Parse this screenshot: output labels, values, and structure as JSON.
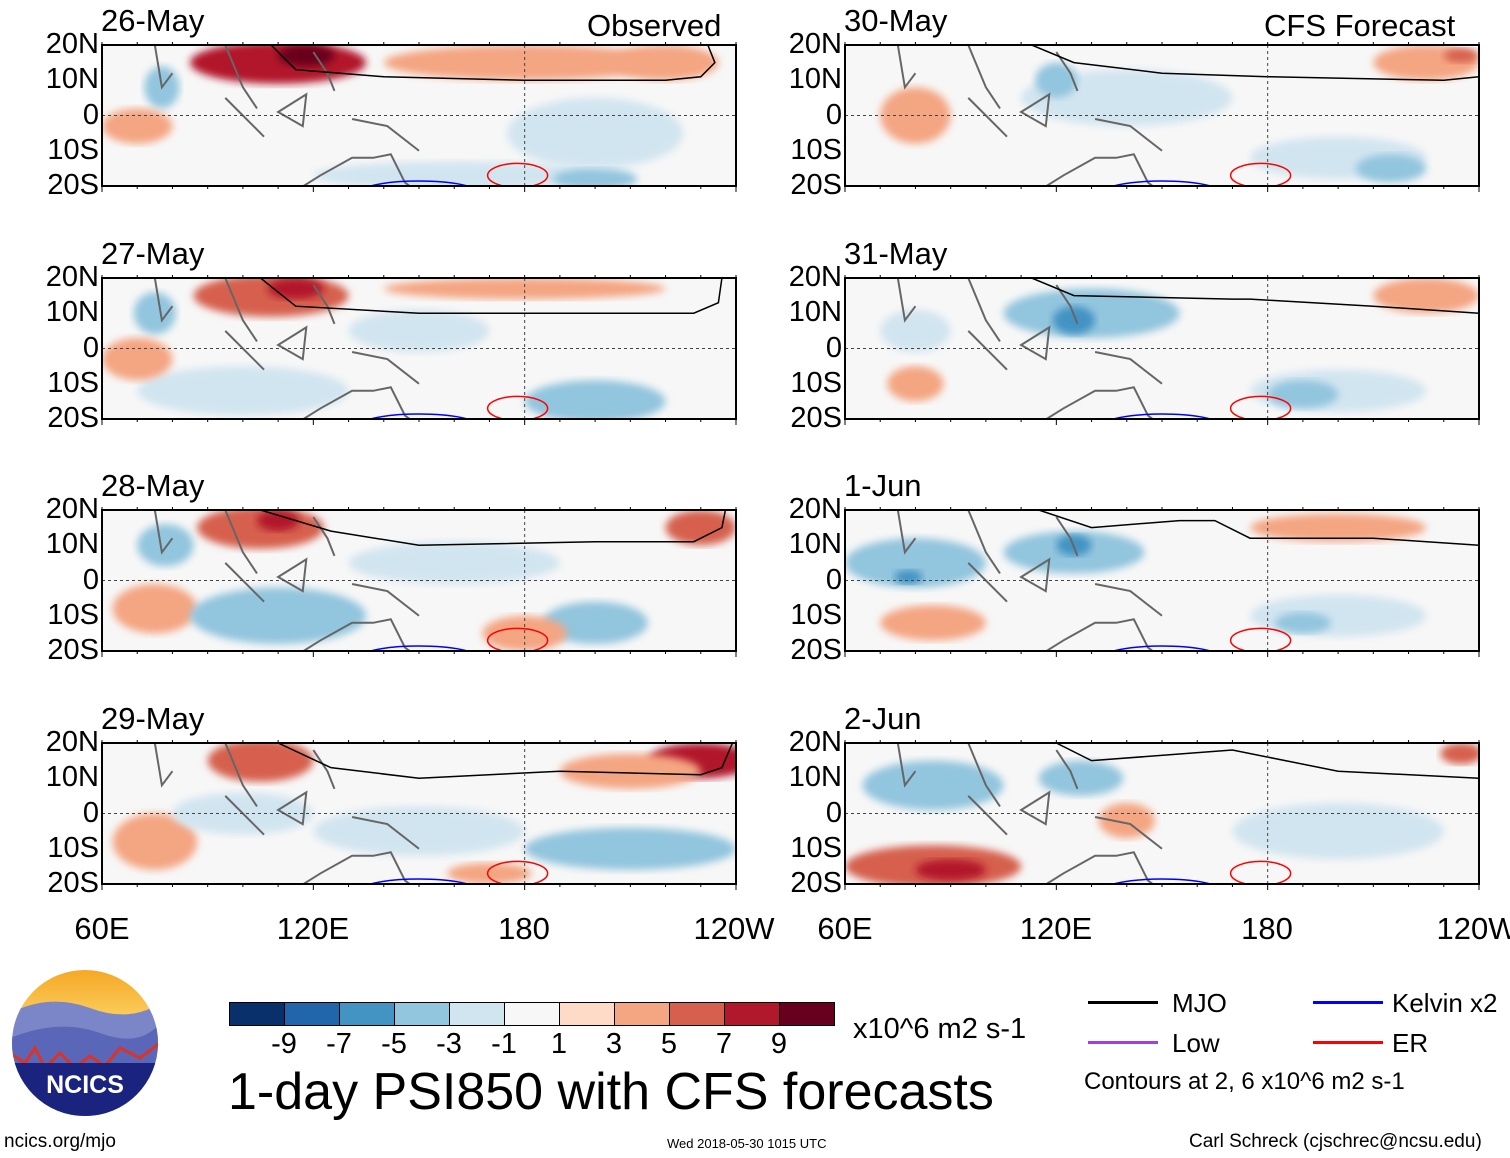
{
  "headers": {
    "left": "Observed",
    "right": "CFS Forecast"
  },
  "panels": [
    {
      "date": "26-May",
      "column": "left"
    },
    {
      "date": "27-May",
      "column": "left"
    },
    {
      "date": "28-May",
      "column": "left"
    },
    {
      "date": "29-May",
      "column": "left"
    },
    {
      "date": "30-May",
      "column": "right"
    },
    {
      "date": "31-May",
      "column": "right"
    },
    {
      "date": "1-Jun",
      "column": "right"
    },
    {
      "date": "2-Jun",
      "column": "right"
    }
  ],
  "lat_labels": [
    "20N",
    "10N",
    "0",
    "10S",
    "20S"
  ],
  "lon_labels": [
    "60E",
    "120E",
    "180",
    "120W"
  ],
  "colorbar": {
    "colors": [
      "#08306b",
      "#2166ac",
      "#4393c3",
      "#92c5de",
      "#d1e5f0",
      "#f7f7f7",
      "#fddbc7",
      "#f4a582",
      "#d6604d",
      "#b2182b",
      "#67001f"
    ],
    "labels": [
      "-9",
      "-7",
      "-5",
      "-3",
      "-1",
      "1",
      "3",
      "5",
      "7",
      "9"
    ],
    "units": "x10^6 m2 s-1"
  },
  "title": "1-day PSI850 with CFS forecasts",
  "legend": {
    "items": [
      {
        "label": "MJO",
        "color": "#000000"
      },
      {
        "label": "Kelvin x2",
        "color": "#0000ff"
      },
      {
        "label": "Low",
        "color": "#a040e0"
      },
      {
        "label": "ER",
        "color": "#ff0000"
      }
    ],
    "note": "Contours at 2, 6 x10^6 m2 s-1"
  },
  "logo": {
    "text": "NCICS"
  },
  "footer": {
    "url": "ncics.org/mjo",
    "timestamp": "Wed 2018-05-30 1015 UTC",
    "credit": "Carl Schreck (cjschrec@ncsu.edu)"
  }
}
